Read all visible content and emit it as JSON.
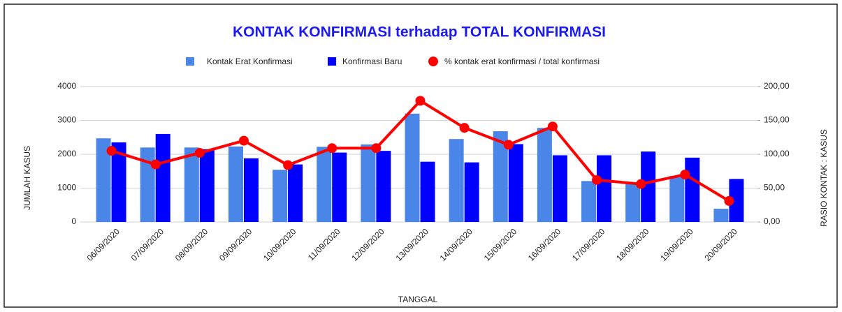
{
  "chart_data": {
    "type": "bar",
    "title": "KONTAK KONFIRMASI terhadap TOTAL KONFIRMASI",
    "x_label": "TANGGAL",
    "y_label": "JUMLAH KASUS",
    "y2_label": "RASIO KONTAK : KASUS",
    "categories": [
      "06/09/2020",
      "07/09/2020",
      "08/09/2020",
      "09/09/2020",
      "10/09/2020",
      "11/09/2020",
      "12/09/2020",
      "13/09/2020",
      "14/09/2020",
      "15/09/2020",
      "16/09/2020",
      "17/09/2020",
      "18/09/2020",
      "19/09/2020",
      "20/09/2020"
    ],
    "series": [
      {
        "name": "Kontak Erat Konfirmasi",
        "color": "#4a86e8",
        "values": [
          2470,
          2200,
          2200,
          2230,
          1540,
          2220,
          2290,
          3200,
          2450,
          2680,
          2780,
          1210,
          1130,
          1360,
          390
        ]
      },
      {
        "name": "Konfirmasi Baru",
        "color": "#0000ff",
        "values": [
          2350,
          2600,
          2150,
          1880,
          1700,
          2050,
          2100,
          1780,
          1760,
          2300,
          1970,
          1970,
          2080,
          1900,
          1270
        ]
      },
      {
        "name": "% kontak erat konfirmasi / total konfirmasi",
        "color": "#ff0000",
        "type": "line",
        "axis": "y2",
        "values": [
          105,
          85,
          102,
          120,
          84,
          109,
          109,
          179,
          139,
          114,
          141,
          62,
          56,
          70,
          31
        ]
      }
    ],
    "ylim": [
      0,
      4000
    ],
    "yticks": [
      0,
      1000,
      2000,
      3000,
      4000
    ],
    "y2lim": [
      0,
      200
    ],
    "y2ticks": [
      {
        "value": 0,
        "label": "0,00"
      },
      {
        "value": 50,
        "label": "50,00"
      },
      {
        "value": 100,
        "label": "100,00"
      },
      {
        "value": 150,
        "label": "150,00"
      },
      {
        "value": 200,
        "label": "200,00"
      }
    ],
    "grid": true,
    "legend": "top"
  }
}
